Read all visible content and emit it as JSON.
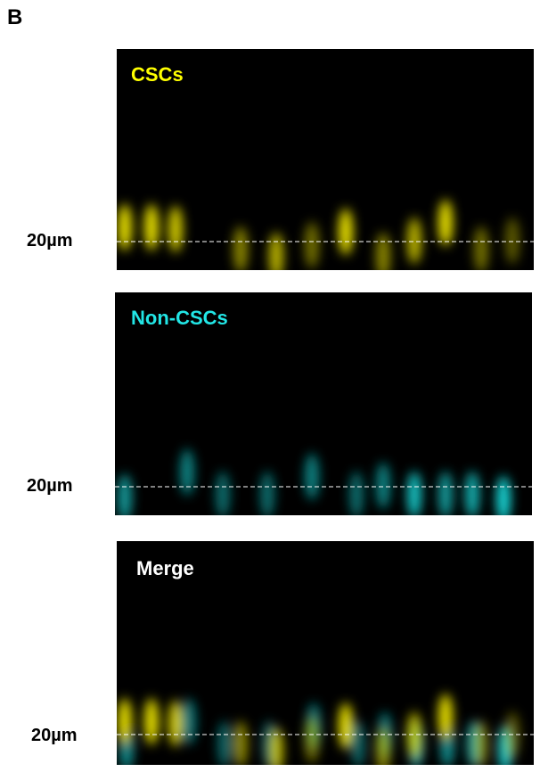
{
  "panel_label": "B",
  "panels": [
    {
      "label": "CSCs",
      "scale_label": "20µm"
    },
    {
      "label": "Non-CSCs",
      "scale_label": "20µm"
    },
    {
      "label": "Merge",
      "scale_label": "20µm"
    }
  ]
}
